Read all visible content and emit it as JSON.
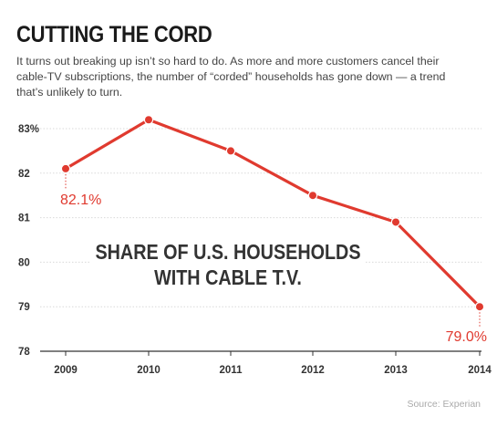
{
  "header": {
    "title": "CUTTING THE CORD",
    "intro": "It turns out breaking up isn’t so hard to do. As more and more customers cancel their cable-TV subscriptions, the number of “corded” households has gone down — a trend that’s unlikely to turn."
  },
  "chart_data": {
    "type": "line",
    "title": "",
    "annotation_lines": [
      "SHARE OF U.S. HOUSEHOLDS",
      "WITH CABLE T.V."
    ],
    "x": [
      2009,
      2010,
      2011,
      2012,
      2013,
      2014
    ],
    "x_tick_labels": [
      "2009",
      "2010",
      "2011",
      "2012",
      "2013",
      "2014"
    ],
    "series": [
      {
        "values": [
          82.1,
          83.2,
          82.5,
          81.5,
          80.9,
          79.0
        ]
      }
    ],
    "y_ticks": [
      78,
      79,
      80,
      81,
      82,
      83
    ],
    "y_tick_labels": [
      "78",
      "79",
      "80",
      "81",
      "82",
      "83%"
    ],
    "ylim": [
      78,
      83.5
    ],
    "grid": "horizontal",
    "data_labels": [
      {
        "index": 0,
        "text": "82.1%"
      },
      {
        "index": 5,
        "text": "79.0%"
      }
    ],
    "colors": {
      "line": "#e03a2f",
      "grid": "#d9d9d9",
      "axis": "#333333"
    }
  },
  "footer": {
    "source": "Source: Experian"
  }
}
